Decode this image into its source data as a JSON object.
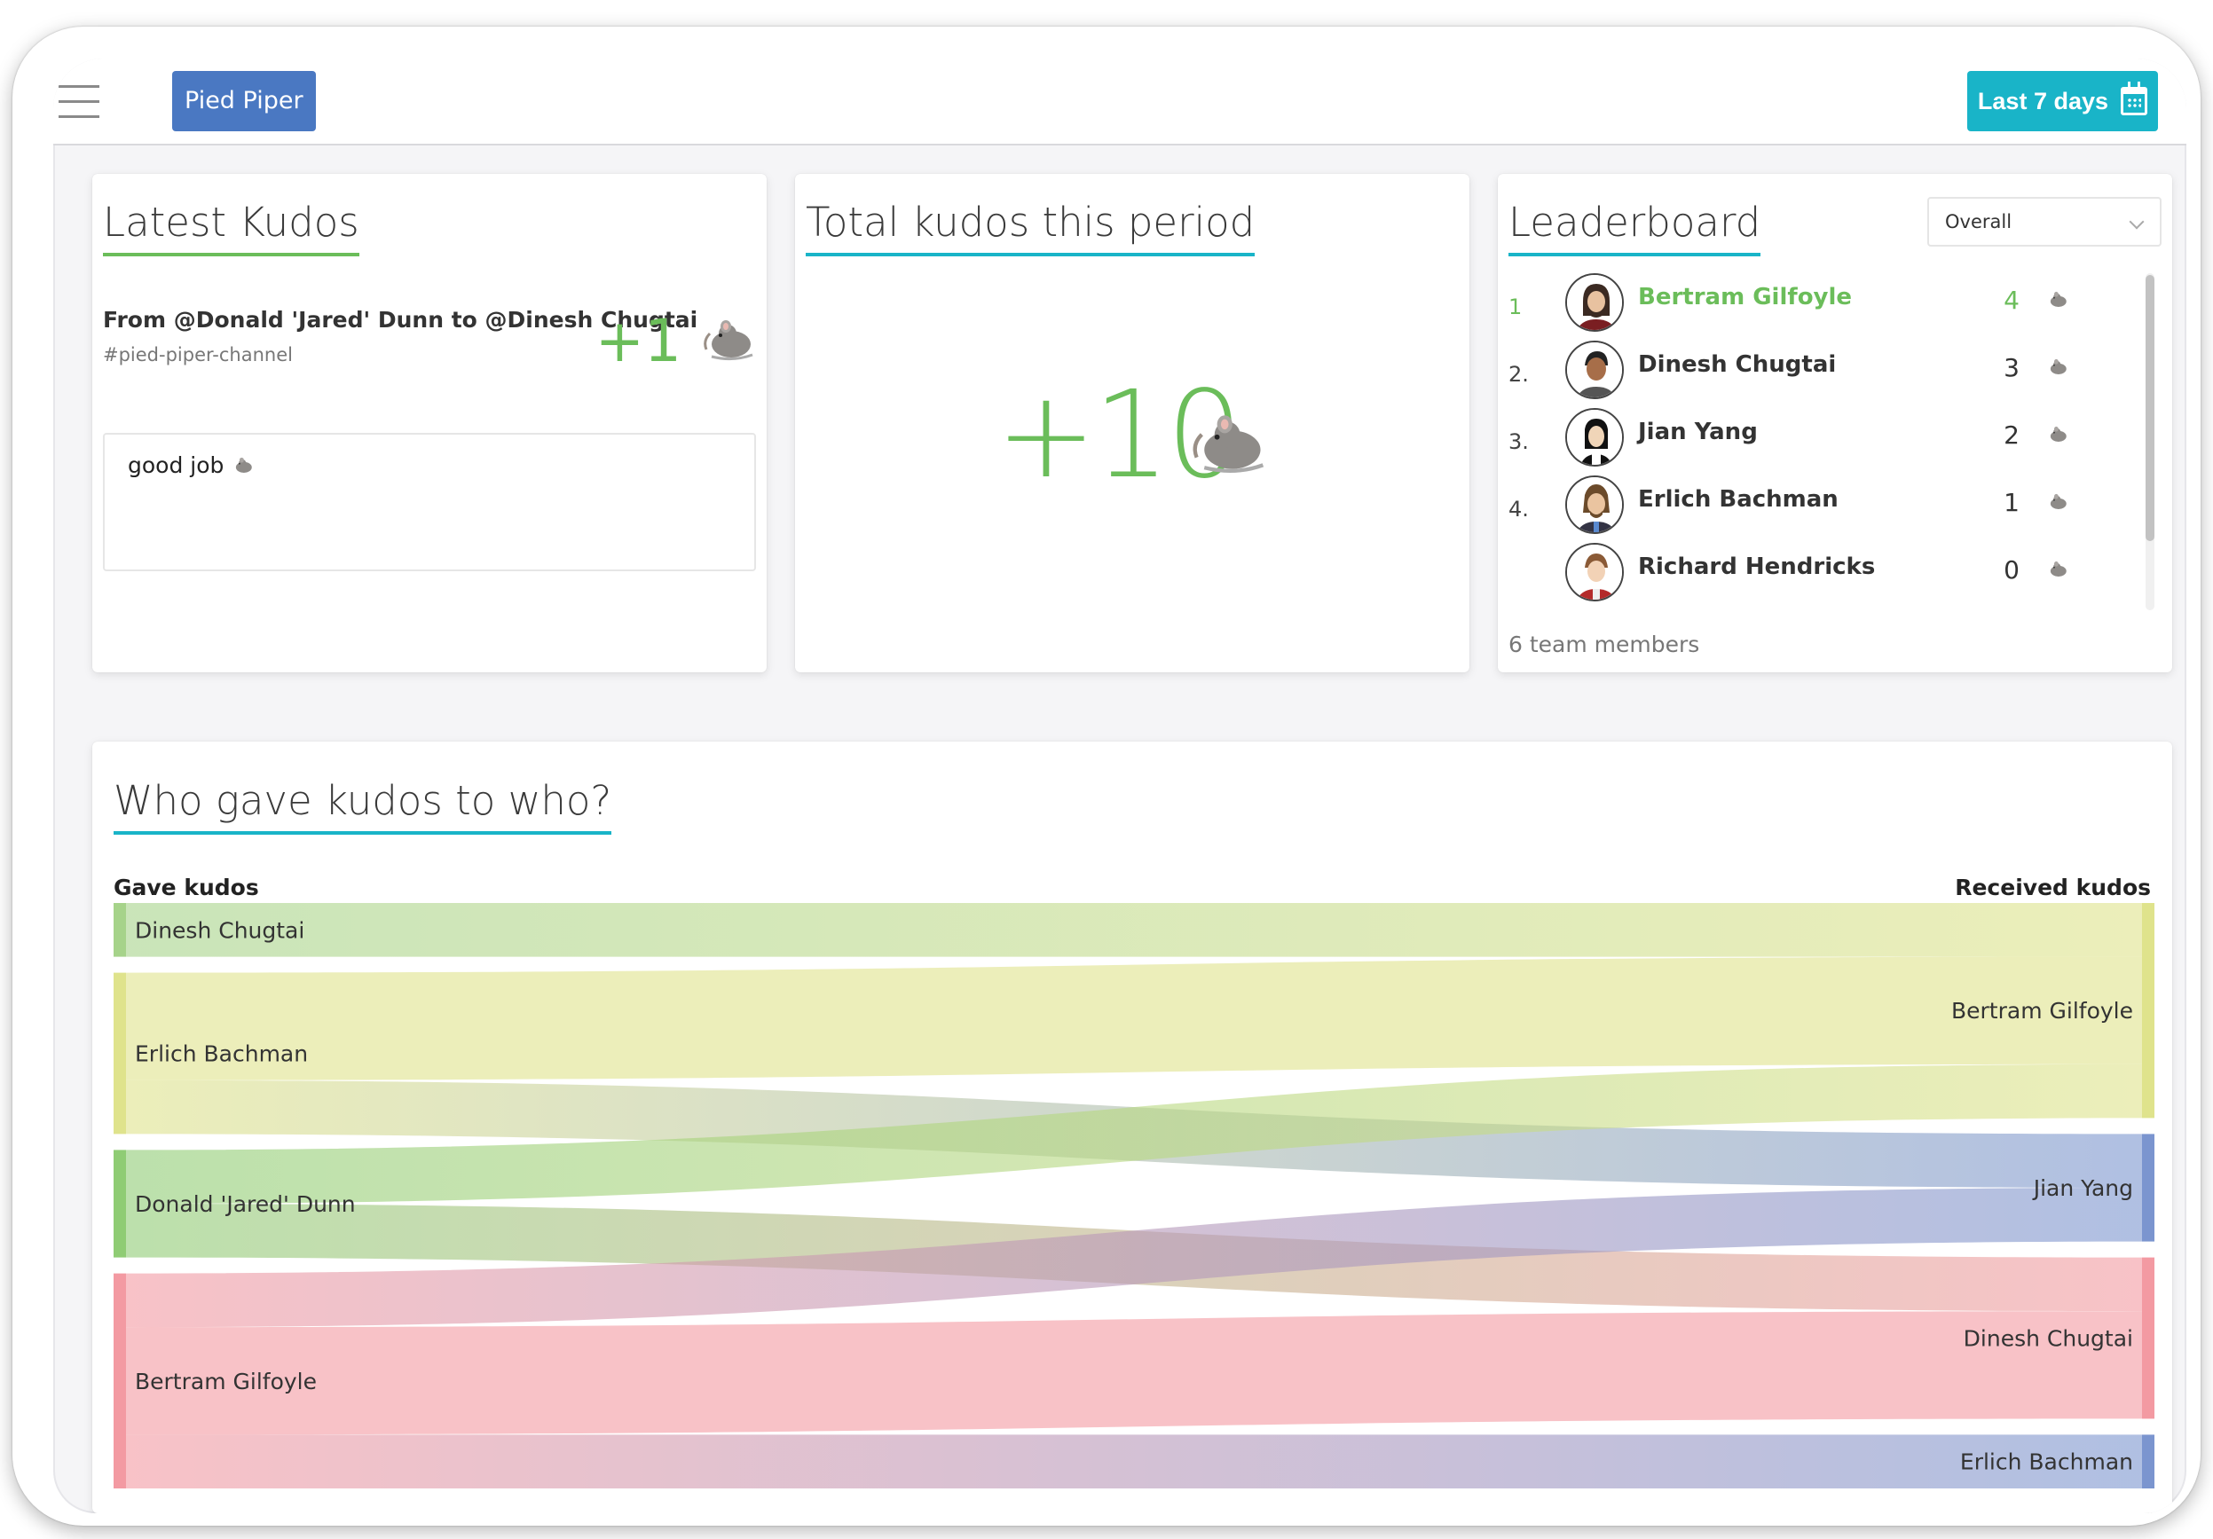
{
  "topbar": {
    "org_name": "Pied Piper",
    "date_range_label": "Last 7 days"
  },
  "latest_kudos": {
    "title": "Latest Kudos",
    "from_line": "From @Donald 'Jared' Dunn to @Dinesh Chugtai",
    "channel": "#pied-piper-channel",
    "amount": "+1",
    "message": "good job"
  },
  "total_kudos": {
    "title": "Total kudos this period",
    "value": "+10"
  },
  "leaderboard": {
    "title": "Leaderboard",
    "filter_value": "Overall",
    "rows": [
      {
        "rank": "1",
        "name": "Bertram Gilfoyle",
        "score": "4"
      },
      {
        "rank": "2.",
        "name": "Dinesh Chugtai",
        "score": "3"
      },
      {
        "rank": "3.",
        "name": "Jian Yang",
        "score": "2"
      },
      {
        "rank": "4.",
        "name": "Erlich Bachman",
        "score": "1"
      },
      {
        "rank": "",
        "name": "Richard Hendricks",
        "score": "0"
      }
    ],
    "footer": "6 team members",
    "highlight_color": "#6bbd5a"
  },
  "flow_chart": {
    "title": "Who gave kudos to who?",
    "left_label": "Gave kudos",
    "right_label": "Received kudos"
  },
  "chart_data": {
    "type": "sankey",
    "title": "Who gave kudos to who?",
    "sources": [
      {
        "name": "Dinesh Chugtai",
        "color": "#a6d38a"
      },
      {
        "name": "Erlich Bachman",
        "color": "#dfe38c"
      },
      {
        "name": "Donald 'Jared' Dunn",
        "color": "#8fcc74"
      },
      {
        "name": "Bertram Gilfoyle",
        "color": "#f39aa2"
      }
    ],
    "targets": [
      {
        "name": "Bertram Gilfoyle",
        "color": "#dfe38c"
      },
      {
        "name": "Jian Yang",
        "color": "#7b95cf"
      },
      {
        "name": "Dinesh Chugtai",
        "color": "#f39aa2"
      },
      {
        "name": "Erlich Bachman",
        "color": "#7b95cf"
      }
    ],
    "links": [
      {
        "source": "Dinesh Chugtai",
        "target": "Bertram Gilfoyle",
        "value": 1
      },
      {
        "source": "Erlich Bachman",
        "target": "Bertram Gilfoyle",
        "value": 2
      },
      {
        "source": "Erlich Bachman",
        "target": "Jian Yang",
        "value": 1
      },
      {
        "source": "Donald 'Jared' Dunn",
        "target": "Bertram Gilfoyle",
        "value": 1
      },
      {
        "source": "Donald 'Jared' Dunn",
        "target": "Dinesh Chugtai",
        "value": 1
      },
      {
        "source": "Bertram Gilfoyle",
        "target": "Jian Yang",
        "value": 1
      },
      {
        "source": "Bertram Gilfoyle",
        "target": "Dinesh Chugtai",
        "value": 2
      },
      {
        "source": "Bertram Gilfoyle",
        "target": "Erlich Bachman",
        "value": 1
      }
    ]
  }
}
